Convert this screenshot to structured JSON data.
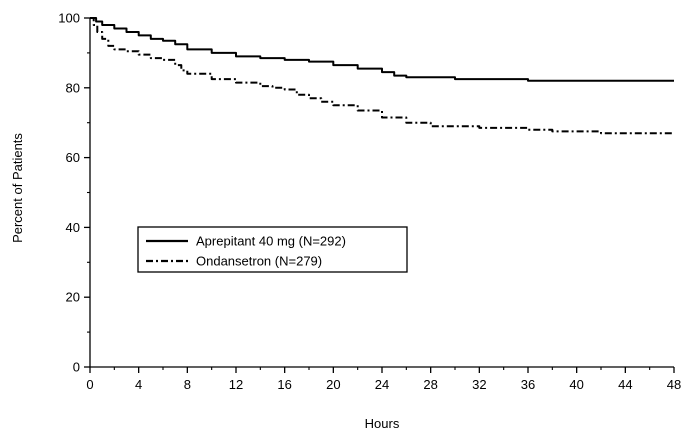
{
  "chart_data": {
    "type": "line",
    "xlabel": "Hours",
    "ylabel": "Percent of Patients",
    "xlim": [
      0,
      48
    ],
    "ylim": [
      0,
      100
    ],
    "x_ticks": [
      0,
      4,
      8,
      12,
      16,
      20,
      24,
      28,
      32,
      36,
      40,
      44,
      48
    ],
    "y_ticks": [
      0,
      20,
      40,
      60,
      80,
      100
    ],
    "grid": false,
    "legend_position": "center-left",
    "series": [
      {
        "name": "Aprepitant 40 mg (N=292)",
        "style": "solid",
        "x": [
          0,
          0.5,
          1,
          2,
          3,
          4,
          5,
          6,
          7,
          8,
          10,
          12,
          14,
          16,
          18,
          20,
          22,
          24,
          25,
          26,
          28,
          30,
          32,
          34,
          36,
          40,
          44,
          48
        ],
        "y": [
          100,
          99,
          98,
          97,
          96,
          95,
          94,
          93.5,
          92.5,
          91,
          90,
          89,
          88.5,
          88,
          87.5,
          86.5,
          85.5,
          84.5,
          83.5,
          83,
          83,
          82.5,
          82.5,
          82.5,
          82,
          82,
          82,
          82
        ]
      },
      {
        "name": "Ondansetron (N=279)",
        "style": "dash-dot",
        "x": [
          0,
          0.3,
          0.6,
          1,
          1.5,
          2,
          3,
          4,
          5,
          6,
          7,
          7.5,
          8,
          10,
          12,
          14,
          15,
          16,
          17,
          18,
          19,
          20,
          22,
          24,
          26,
          28,
          30,
          32,
          34,
          36,
          38,
          40,
          42,
          44,
          46,
          48
        ],
        "y": [
          100,
          98,
          96,
          94,
          92,
          91,
          90.5,
          89.5,
          88.5,
          88,
          86.5,
          85,
          84,
          82.5,
          81.5,
          80.5,
          80,
          79.5,
          78,
          77,
          76,
          75,
          73.5,
          71.5,
          70,
          69,
          69,
          68.5,
          68.5,
          68,
          67.5,
          67.5,
          67,
          67,
          67,
          67
        ]
      }
    ]
  }
}
